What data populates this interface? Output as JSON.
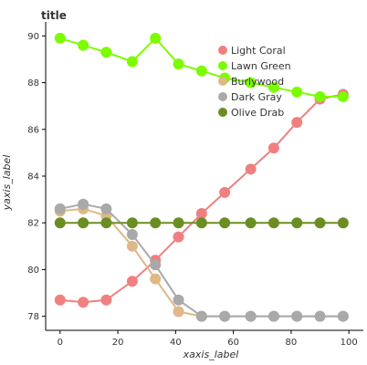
{
  "chart_data": {
    "type": "line",
    "title": "title",
    "xlabel": "xaxis_label",
    "ylabel": "yaxis_label",
    "xlim": [
      -5,
      105
    ],
    "ylim": [
      77.4,
      90.6
    ],
    "xticks": [
      0,
      20,
      40,
      60,
      80,
      100
    ],
    "yticks": [
      78,
      80,
      82,
      84,
      86,
      88,
      90
    ],
    "legend_position": "right, inside plot",
    "series": [
      {
        "name": "Light Coral",
        "color": "#F08080",
        "x": [
          0,
          8,
          16,
          25,
          33,
          41,
          49,
          57,
          66,
          74,
          82,
          90,
          98
        ],
        "y": [
          78.7,
          78.6,
          78.7,
          79.5,
          80.4,
          81.4,
          82.4,
          83.3,
          84.3,
          85.2,
          86.3,
          87.3,
          87.5
        ]
      },
      {
        "name": "Lawn Green",
        "color": "#7CFC00",
        "x": [
          0,
          8,
          16,
          25,
          33,
          41,
          49,
          57,
          66,
          74,
          82,
          90,
          98
        ],
        "y": [
          89.9,
          89.6,
          89.3,
          88.9,
          89.9,
          88.8,
          88.5,
          88.2,
          88.0,
          87.8,
          87.6,
          87.4,
          87.4
        ]
      },
      {
        "name": "Burlywood",
        "color": "#DEB887",
        "x": [
          0,
          8,
          16,
          25,
          33,
          41,
          49,
          57,
          66,
          74,
          82,
          90,
          98
        ],
        "y": [
          82.5,
          82.6,
          82.3,
          81.0,
          79.6,
          78.2,
          78.0,
          78.0,
          78.0,
          78.0,
          78.0,
          78.0,
          78.0
        ]
      },
      {
        "name": "Dark Gray",
        "color": "#A9A9A9",
        "x": [
          0,
          8,
          16,
          25,
          33,
          41,
          49,
          57,
          66,
          74,
          82,
          90,
          98
        ],
        "y": [
          82.6,
          82.8,
          82.6,
          81.5,
          80.2,
          78.7,
          78.0,
          78.0,
          78.0,
          78.0,
          78.0,
          78.0,
          78.0
        ]
      },
      {
        "name": "Olive Drab",
        "color": "#6B8E23",
        "x": [
          0,
          8,
          16,
          25,
          33,
          41,
          49,
          57,
          66,
          74,
          82,
          90,
          98
        ],
        "y": [
          82.0,
          82.0,
          82.0,
          82.0,
          82.0,
          82.0,
          82.0,
          82.0,
          82.0,
          82.0,
          82.0,
          82.0,
          82.0
        ]
      }
    ]
  }
}
